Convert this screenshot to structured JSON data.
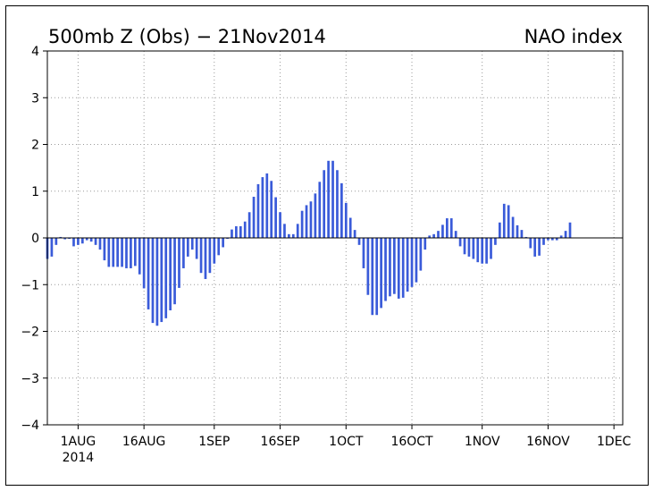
{
  "chart_data": {
    "type": "bar",
    "title": "500mb Z (Obs) − 21Nov2014",
    "subtitle": "NAO index",
    "xlabel": "",
    "ylabel": "",
    "ylim": [
      -4,
      4
    ],
    "yticks": [
      4,
      3,
      2,
      1,
      0,
      -1,
      -2,
      -3,
      -4
    ],
    "ytick_labels": [
      "4",
      "3",
      "2",
      "1",
      "0",
      "−1",
      "−2",
      "−3",
      "−4"
    ],
    "xlim": [
      "2014-07-25",
      "2014-12-03"
    ],
    "xticks": [
      {
        "date": "2014-08-01",
        "label": "1AUG",
        "label2": "2014"
      },
      {
        "date": "2014-08-16",
        "label": "16AUG"
      },
      {
        "date": "2014-09-01",
        "label": "1SEP"
      },
      {
        "date": "2014-09-16",
        "label": "16SEP"
      },
      {
        "date": "2014-10-01",
        "label": "1OCT"
      },
      {
        "date": "2014-10-16",
        "label": "16OCT"
      },
      {
        "date": "2014-11-01",
        "label": "1NOV"
      },
      {
        "date": "2014-11-16",
        "label": "16NOV"
      },
      {
        "date": "2014-12-01",
        "label": "1DEC"
      }
    ],
    "grid": true,
    "bar_color": "#3a5bd9",
    "start_date": "2014-07-25",
    "values": [
      -0.45,
      -0.4,
      -0.15,
      0.02,
      -0.03,
      -0.02,
      -0.18,
      -0.15,
      -0.12,
      -0.05,
      -0.08,
      -0.15,
      -0.25,
      -0.48,
      -0.62,
      -0.62,
      -0.62,
      -0.62,
      -0.65,
      -0.65,
      -0.6,
      -0.78,
      -1.08,
      -1.53,
      -1.82,
      -1.88,
      -1.8,
      -1.72,
      -1.55,
      -1.42,
      -1.07,
      -0.65,
      -0.4,
      -0.25,
      -0.45,
      -0.75,
      -0.88,
      -0.75,
      -0.55,
      -0.37,
      -0.2,
      -0.02,
      0.18,
      0.25,
      0.25,
      0.35,
      0.55,
      0.88,
      1.15,
      1.3,
      1.38,
      1.22,
      0.87,
      0.55,
      0.3,
      0.08,
      0.08,
      0.3,
      0.58,
      0.7,
      0.78,
      0.95,
      1.2,
      1.45,
      1.65,
      1.65,
      1.45,
      1.17,
      0.75,
      0.43,
      0.17,
      -0.15,
      -0.65,
      -1.22,
      -1.65,
      -1.65,
      -1.5,
      -1.35,
      -1.25,
      -1.2,
      -1.3,
      -1.28,
      -1.15,
      -1.05,
      -0.95,
      -0.7,
      -0.25,
      0.05,
      0.08,
      0.15,
      0.28,
      0.42,
      0.42,
      0.15,
      -0.18,
      -0.35,
      -0.4,
      -0.45,
      -0.52,
      -0.55,
      -0.55,
      -0.45,
      -0.15,
      0.33,
      0.73,
      0.7,
      0.45,
      0.27,
      0.17,
      0.02,
      -0.22,
      -0.4,
      -0.38,
      -0.15,
      -0.05,
      -0.05,
      -0.05,
      0.05,
      0.15,
      0.33
    ]
  }
}
